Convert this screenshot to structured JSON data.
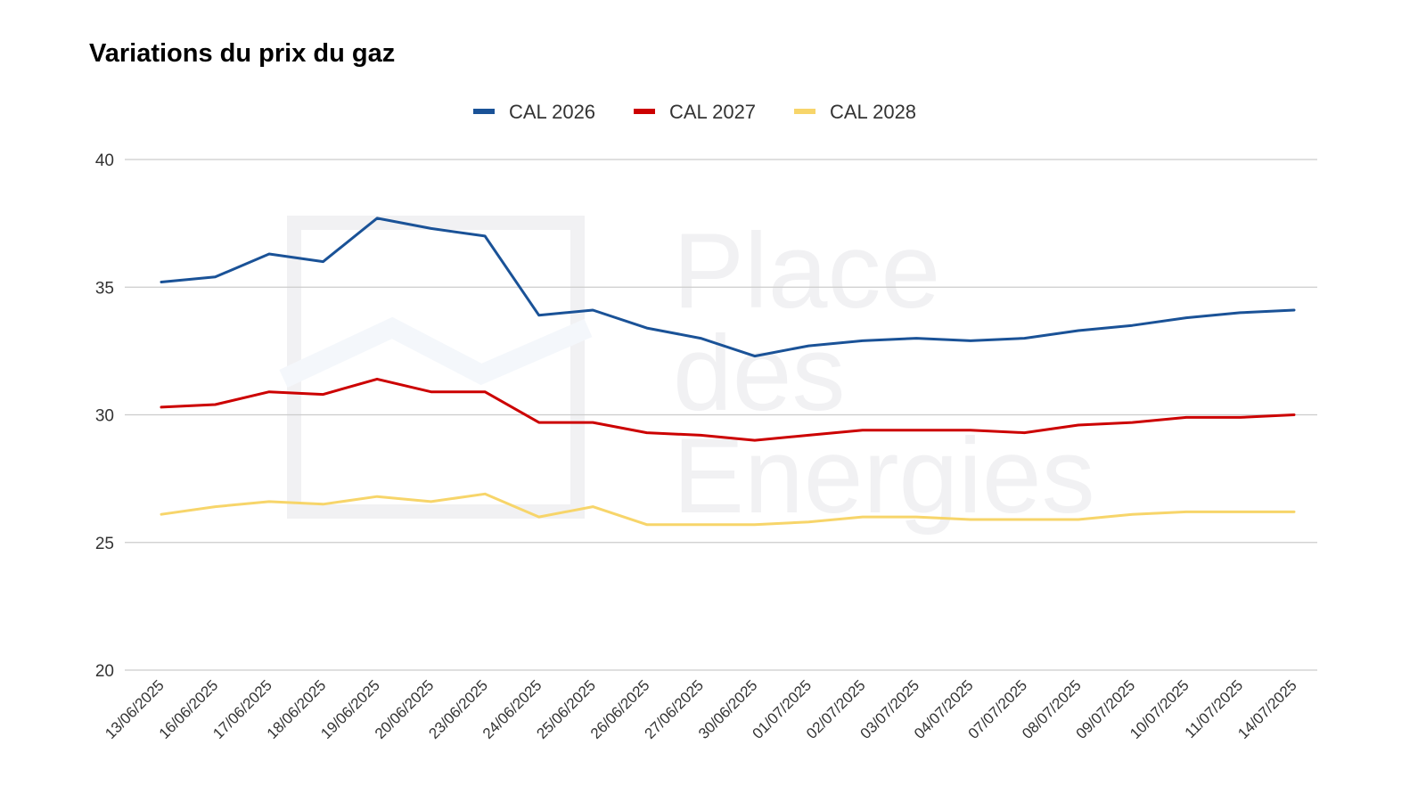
{
  "chart_data": {
    "type": "line",
    "title": "Variations du prix du gaz",
    "xlabel": "",
    "ylabel": "",
    "ylim": [
      20,
      40
    ],
    "yticks": [
      "40",
      "35",
      "30",
      "25",
      "20"
    ],
    "grid": true,
    "legend_position": "top",
    "categories": [
      "13/06/2025",
      "16/06/2025",
      "17/06/2025",
      "18/06/2025",
      "19/06/2025",
      "20/06/2025",
      "23/06/2025",
      "24/06/2025",
      "25/06/2025",
      "26/06/2025",
      "27/06/2025",
      "30/06/2025",
      "01/07/2025",
      "02/07/2025",
      "03/07/2025",
      "04/07/2025",
      "07/07/2025",
      "08/07/2025",
      "09/07/2025",
      "10/07/2025",
      "11/07/2025",
      "14/07/2025"
    ],
    "series": [
      {
        "name": "CAL 2026",
        "color": "#1a5297",
        "values": [
          35.2,
          35.4,
          36.3,
          36.0,
          37.7,
          37.3,
          37.0,
          33.9,
          34.1,
          33.4,
          33.0,
          32.3,
          32.7,
          32.9,
          33.0,
          32.9,
          33.0,
          33.3,
          33.5,
          33.8,
          34.0,
          34.1
        ]
      },
      {
        "name": "CAL 2027",
        "color": "#cc0000",
        "values": [
          30.3,
          30.4,
          30.9,
          30.8,
          31.4,
          30.9,
          30.9,
          29.7,
          29.7,
          29.3,
          29.2,
          29.0,
          29.2,
          29.4,
          29.4,
          29.4,
          29.3,
          29.6,
          29.7,
          29.9,
          29.9,
          30.0
        ]
      },
      {
        "name": "CAL 2028",
        "color": "#f7d56a",
        "values": [
          26.1,
          26.4,
          26.6,
          26.5,
          26.8,
          26.6,
          26.9,
          26.0,
          26.4,
          25.7,
          25.7,
          25.7,
          25.8,
          26.0,
          26.0,
          25.9,
          25.9,
          25.9,
          26.1,
          26.2,
          26.2,
          26.2
        ]
      }
    ]
  },
  "watermark": {
    "lines": [
      "Place",
      "des",
      "Energies"
    ],
    "color": "#f1f1f3"
  }
}
